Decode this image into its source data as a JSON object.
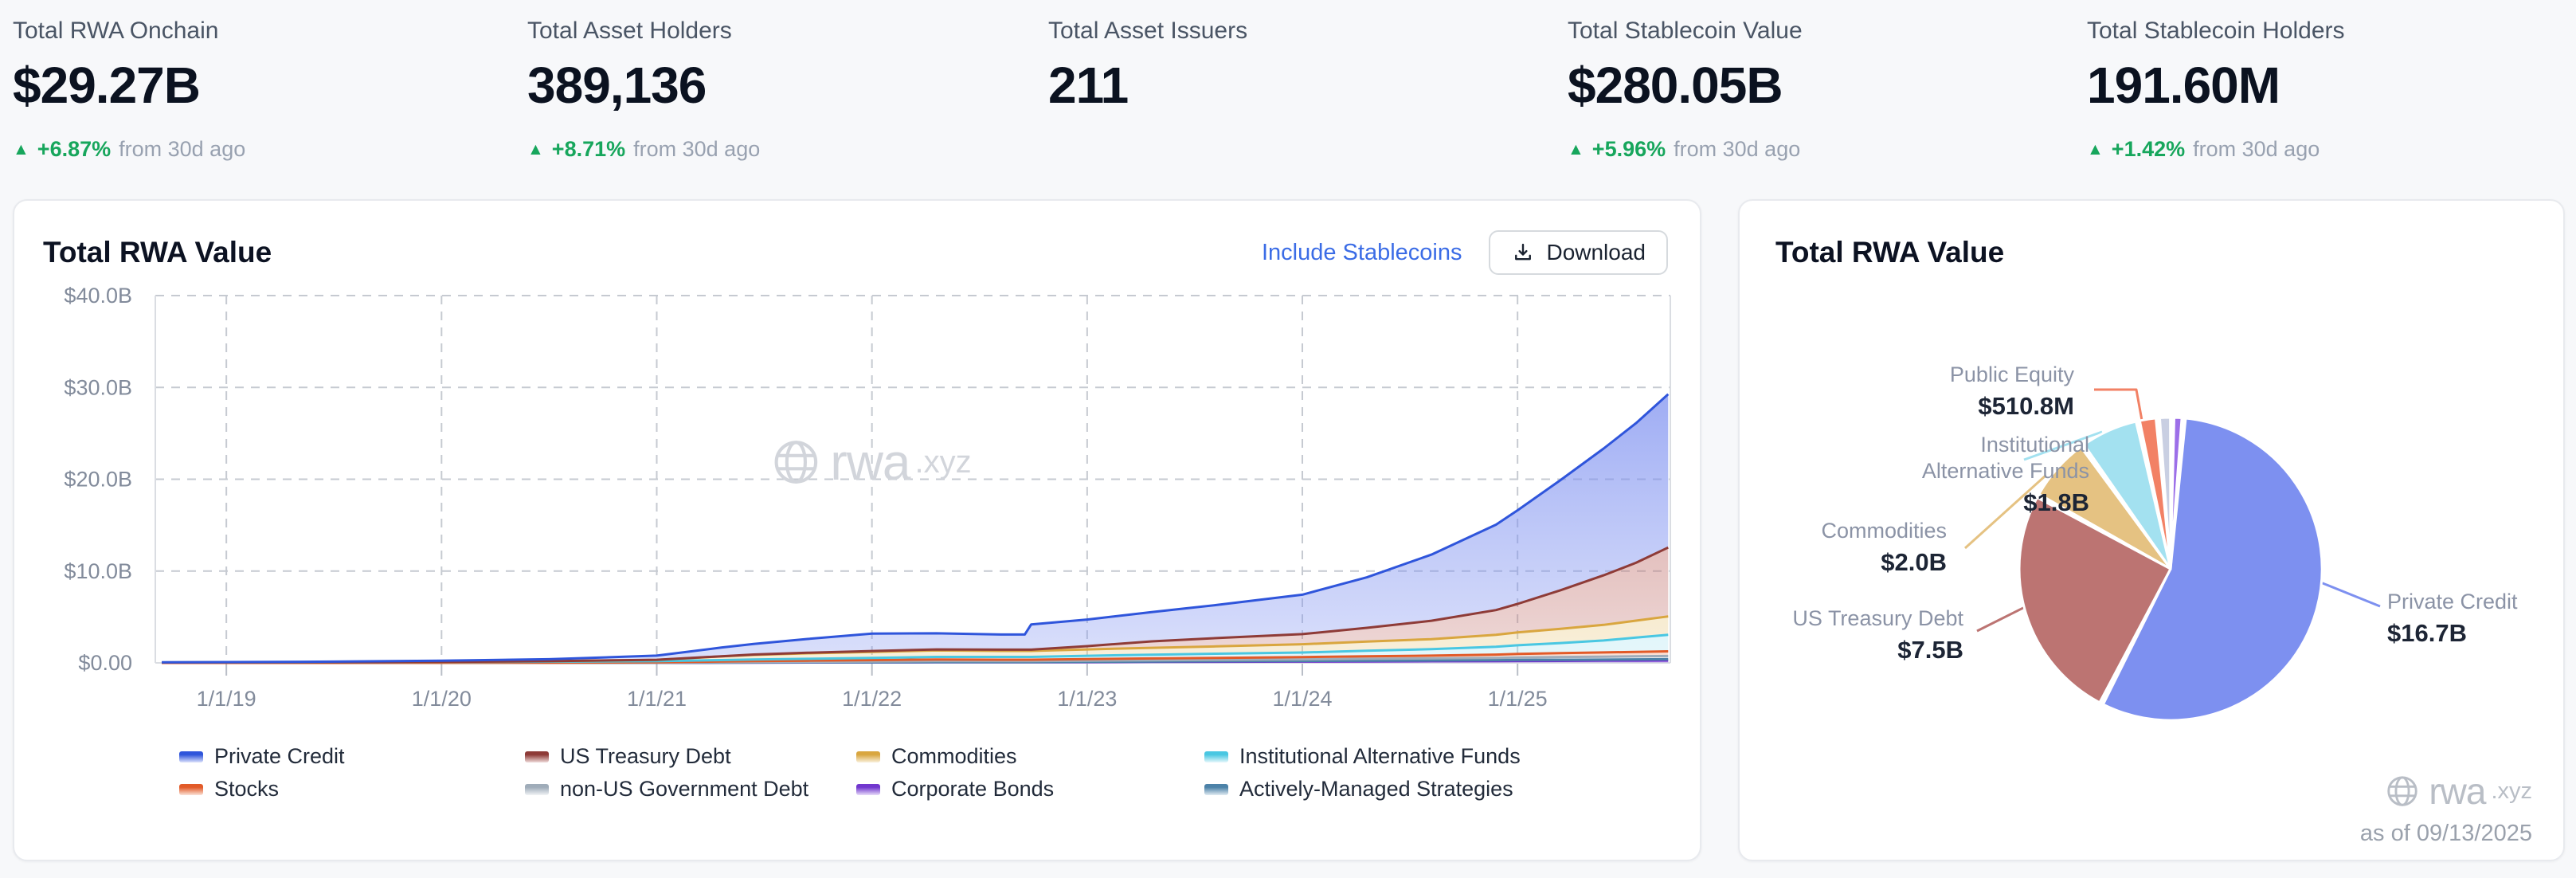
{
  "stats": [
    {
      "label": "Total RWA Onchain",
      "value": "$29.27B",
      "delta_icon": "▲",
      "delta": "+6.87%",
      "note": "from 30d ago"
    },
    {
      "label": "Total Asset Holders",
      "value": "389,136",
      "delta_icon": "▲",
      "delta": "+8.71%",
      "note": "from 30d ago"
    },
    {
      "label": "Total Asset Issuers",
      "value": "211"
    },
    {
      "label": "Total Stablecoin Value",
      "value": "$280.05B",
      "delta_icon": "▲",
      "delta": "+5.96%",
      "note": "from 30d ago"
    },
    {
      "label": "Total Stablecoin Holders",
      "value": "191.60M",
      "delta_icon": "▲",
      "delta": "+1.42%",
      "note": "from 30d ago"
    }
  ],
  "area_card": {
    "title": "Total RWA Value",
    "toggle_label": "Include Stablecoins",
    "download_label": "Download",
    "watermark": {
      "brand": "rwa",
      "tld": ".xyz"
    }
  },
  "pie_card": {
    "title": "Total RWA Value",
    "watermark": {
      "brand": "rwa",
      "tld": ".xyz"
    },
    "as_of": "as of 09/13/2025"
  },
  "colors": {
    "accent_link": "#3b6ce6",
    "delta_green": "#17a65c",
    "grid": "#c6cad1",
    "axis": "#dadde2",
    "tick_label": "#828b9b"
  },
  "chart_data": [
    {
      "type": "area",
      "stacked": true,
      "title": "Total RWA Value",
      "x_unit": "decimal_year",
      "x_domain": [
        2018.67,
        2025.71
      ],
      "ylim": [
        0,
        40
      ],
      "grid": "dashed",
      "y_ticks": [
        {
          "v": 40,
          "label": "$40.0B"
        },
        {
          "v": 30,
          "label": "$30.0B"
        },
        {
          "v": 20,
          "label": "$20.0B"
        },
        {
          "v": 10,
          "label": "$10.0B"
        },
        {
          "v": 0,
          "label": "$0.00"
        }
      ],
      "x_ticks": [
        {
          "v": 2019,
          "label": "1/1/19"
        },
        {
          "v": 2020,
          "label": "1/1/20"
        },
        {
          "v": 2021,
          "label": "1/1/21"
        },
        {
          "v": 2022,
          "label": "1/1/22"
        },
        {
          "v": 2023,
          "label": "1/1/23"
        },
        {
          "v": 2024,
          "label": "1/1/24"
        },
        {
          "v": 2025,
          "label": "1/1/25"
        }
      ],
      "x": [
        2018.7,
        2019.0,
        2019.5,
        2020.0,
        2020.5,
        2021.0,
        2021.3,
        2021.45,
        2021.7,
        2022.0,
        2022.3,
        2022.6,
        2022.71,
        2022.74,
        2023.0,
        2023.3,
        2023.6,
        2024.0,
        2024.3,
        2024.6,
        2024.9,
        2025.0,
        2025.2,
        2025.4,
        2025.55,
        2025.7
      ],
      "series": [
        {
          "name": "Corporate Bonds",
          "line": "#7137ce",
          "fill": "#a77be6",
          "values": [
            0,
            0,
            0,
            0,
            0,
            0.01,
            0.02,
            0.03,
            0.04,
            0.05,
            0.06,
            0.06,
            0.06,
            0.06,
            0.08,
            0.1,
            0.12,
            0.14,
            0.16,
            0.18,
            0.2,
            0.21,
            0.22,
            0.23,
            0.24,
            0.25
          ]
        },
        {
          "name": "Actively-Managed Strategies",
          "line": "#4c82a8",
          "fill": "#8fb4ce",
          "values": [
            0,
            0,
            0,
            0,
            0,
            0,
            0.01,
            0.01,
            0.02,
            0.02,
            0.03,
            0.03,
            0.03,
            0.03,
            0.04,
            0.05,
            0.06,
            0.07,
            0.08,
            0.09,
            0.1,
            0.11,
            0.12,
            0.13,
            0.14,
            0.15
          ]
        },
        {
          "name": "non-US Government Debt",
          "line": "#9facb9",
          "fill": "#cbd4dc",
          "values": [
            0,
            0,
            0,
            0,
            0.01,
            0.02,
            0.04,
            0.05,
            0.06,
            0.08,
            0.1,
            0.1,
            0.1,
            0.1,
            0.12,
            0.14,
            0.15,
            0.17,
            0.2,
            0.22,
            0.25,
            0.27,
            0.3,
            0.32,
            0.34,
            0.35
          ]
        },
        {
          "name": "Stocks",
          "line": "#e25a28",
          "fill": "#f0936b",
          "values": [
            0,
            0,
            0,
            0.01,
            0.02,
            0.03,
            0.08,
            0.1,
            0.12,
            0.15,
            0.18,
            0.16,
            0.16,
            0.16,
            0.18,
            0.2,
            0.22,
            0.25,
            0.28,
            0.3,
            0.35,
            0.38,
            0.42,
            0.46,
            0.48,
            0.51
          ]
        },
        {
          "name": "Institutional Alternative Funds",
          "line": "#49c7e2",
          "fill": "#a5e2f0",
          "values": [
            0.04,
            0.05,
            0.06,
            0.08,
            0.1,
            0.12,
            0.15,
            0.18,
            0.2,
            0.25,
            0.28,
            0.3,
            0.3,
            0.3,
            0.35,
            0.4,
            0.45,
            0.5,
            0.6,
            0.7,
            0.85,
            0.95,
            1.1,
            1.3,
            1.55,
            1.8
          ]
        },
        {
          "name": "Commodities",
          "line": "#d9a63f",
          "fill": "#e8c87e",
          "values": [
            0,
            0,
            0.01,
            0.02,
            0.05,
            0.15,
            0.4,
            0.5,
            0.6,
            0.65,
            0.7,
            0.65,
            0.65,
            0.65,
            0.7,
            0.75,
            0.8,
            0.9,
            1.0,
            1.1,
            1.3,
            1.4,
            1.55,
            1.7,
            1.85,
            2.0
          ]
        },
        {
          "name": "US Treasury Debt",
          "line": "#8e3b37",
          "fill": "#c47874",
          "values": [
            0,
            0,
            0,
            0,
            0,
            0.01,
            0.02,
            0.04,
            0.06,
            0.09,
            0.12,
            0.14,
            0.14,
            0.14,
            0.35,
            0.7,
            0.9,
            1.1,
            1.5,
            2.0,
            2.7,
            3.1,
            4.2,
            5.4,
            6.3,
            7.5
          ]
        },
        {
          "name": "Private Credit",
          "line": "#2f55db",
          "fill": "#7d90f0",
          "values": [
            0.02,
            0.04,
            0.07,
            0.12,
            0.22,
            0.45,
            0.95,
            1.15,
            1.5,
            1.9,
            1.75,
            1.65,
            1.65,
            2.75,
            2.9,
            3.2,
            3.6,
            4.3,
            5.5,
            7.2,
            9.3,
            10.2,
            12.0,
            13.8,
            15.2,
            16.7
          ]
        }
      ],
      "legend_columns": [
        [
          "Private Credit",
          "Stocks"
        ],
        [
          "US Treasury Debt",
          "non-US Government Debt"
        ],
        [
          "Commodities",
          "Corporate Bonds"
        ],
        [
          "Institutional Alternative Funds",
          "Actively-Managed Strategies"
        ]
      ]
    },
    {
      "type": "pie",
      "title": "Total RWA Value",
      "start_angle_deg": 5,
      "slices": [
        {
          "label": "Private Credit",
          "value_b": 16.7,
          "value_label": "$16.7B",
          "color": "#7d90f0"
        },
        {
          "label": "US Treasury Debt",
          "value_b": 7.5,
          "value_label": "$7.5B",
          "color": "#bc7472"
        },
        {
          "label": "Commodities",
          "value_b": 2.0,
          "value_label": "$2.0B",
          "color": "#e5c282"
        },
        {
          "label": "Institutional Alternative Funds",
          "value_b": 1.8,
          "value_label": "$1.8B",
          "color": "#a3e1f0"
        },
        {
          "label": "Public Equity",
          "value_b": 0.5108,
          "value_label": "$510.8M",
          "color": "#f28165"
        },
        {
          "label": "",
          "value_b": 0.33,
          "value_label": "",
          "color": "#c9cfe2"
        },
        {
          "label": "",
          "value_b": 0.24,
          "value_label": "",
          "color": "#9c6fe8"
        }
      ]
    }
  ]
}
